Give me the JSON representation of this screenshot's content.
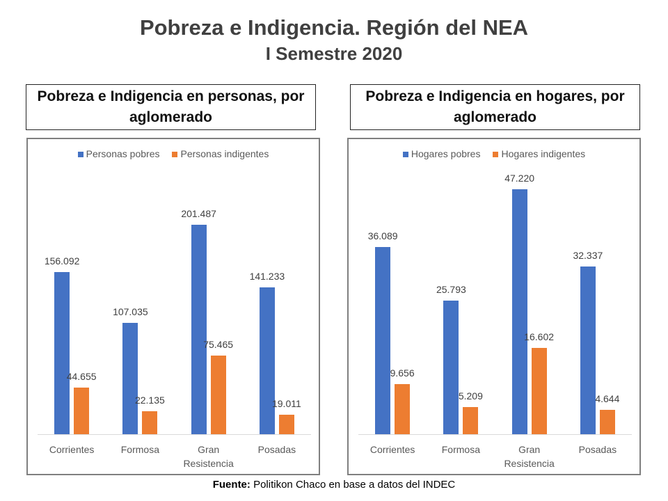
{
  "header": {
    "title": "Pobreza e Indigencia. Región del NEA",
    "subtitle": "I Semestre 2020"
  },
  "footer": {
    "label": "Fuente:",
    "text": "Politikon Chaco en base a datos del INDEC"
  },
  "chart_data": [
    {
      "type": "bar",
      "title": "Pobreza e Indigencia en personas, por aglomerado",
      "categories": [
        "Corrientes",
        "Formosa",
        "Gran Resistencia",
        "Posadas"
      ],
      "series": [
        {
          "name": "Personas pobres",
          "color": "#4472c4",
          "values": [
            156092,
            107035,
            201487,
            141233
          ],
          "value_labels": [
            "156.092",
            "107.035",
            "201.487",
            "141.233"
          ]
        },
        {
          "name": "Personas indigentes",
          "color": "#ed7d31",
          "values": [
            44655,
            22135,
            75465,
            19011
          ],
          "value_labels": [
            "44.655",
            "22.135",
            "75.465",
            "19.011"
          ]
        }
      ],
      "ylim": [
        0,
        250000
      ]
    },
    {
      "type": "bar",
      "title": "Pobreza e Indigencia en hogares, por aglomerado",
      "categories": [
        "Corrientes",
        "Formosa",
        "Gran Resistencia",
        "Posadas"
      ],
      "series": [
        {
          "name": "Hogares pobres",
          "color": "#4472c4",
          "values": [
            36089,
            25793,
            47220,
            32337
          ],
          "value_labels": [
            "36.089",
            "25.793",
            "47.220",
            "32.337"
          ]
        },
        {
          "name": "Hogares indigentes",
          "color": "#ed7d31",
          "values": [
            9656,
            5209,
            16602,
            4644
          ],
          "value_labels": [
            "9.656",
            "5.209",
            "16.602",
            "4.644"
          ]
        }
      ],
      "ylim": [
        0,
        50000
      ]
    }
  ]
}
